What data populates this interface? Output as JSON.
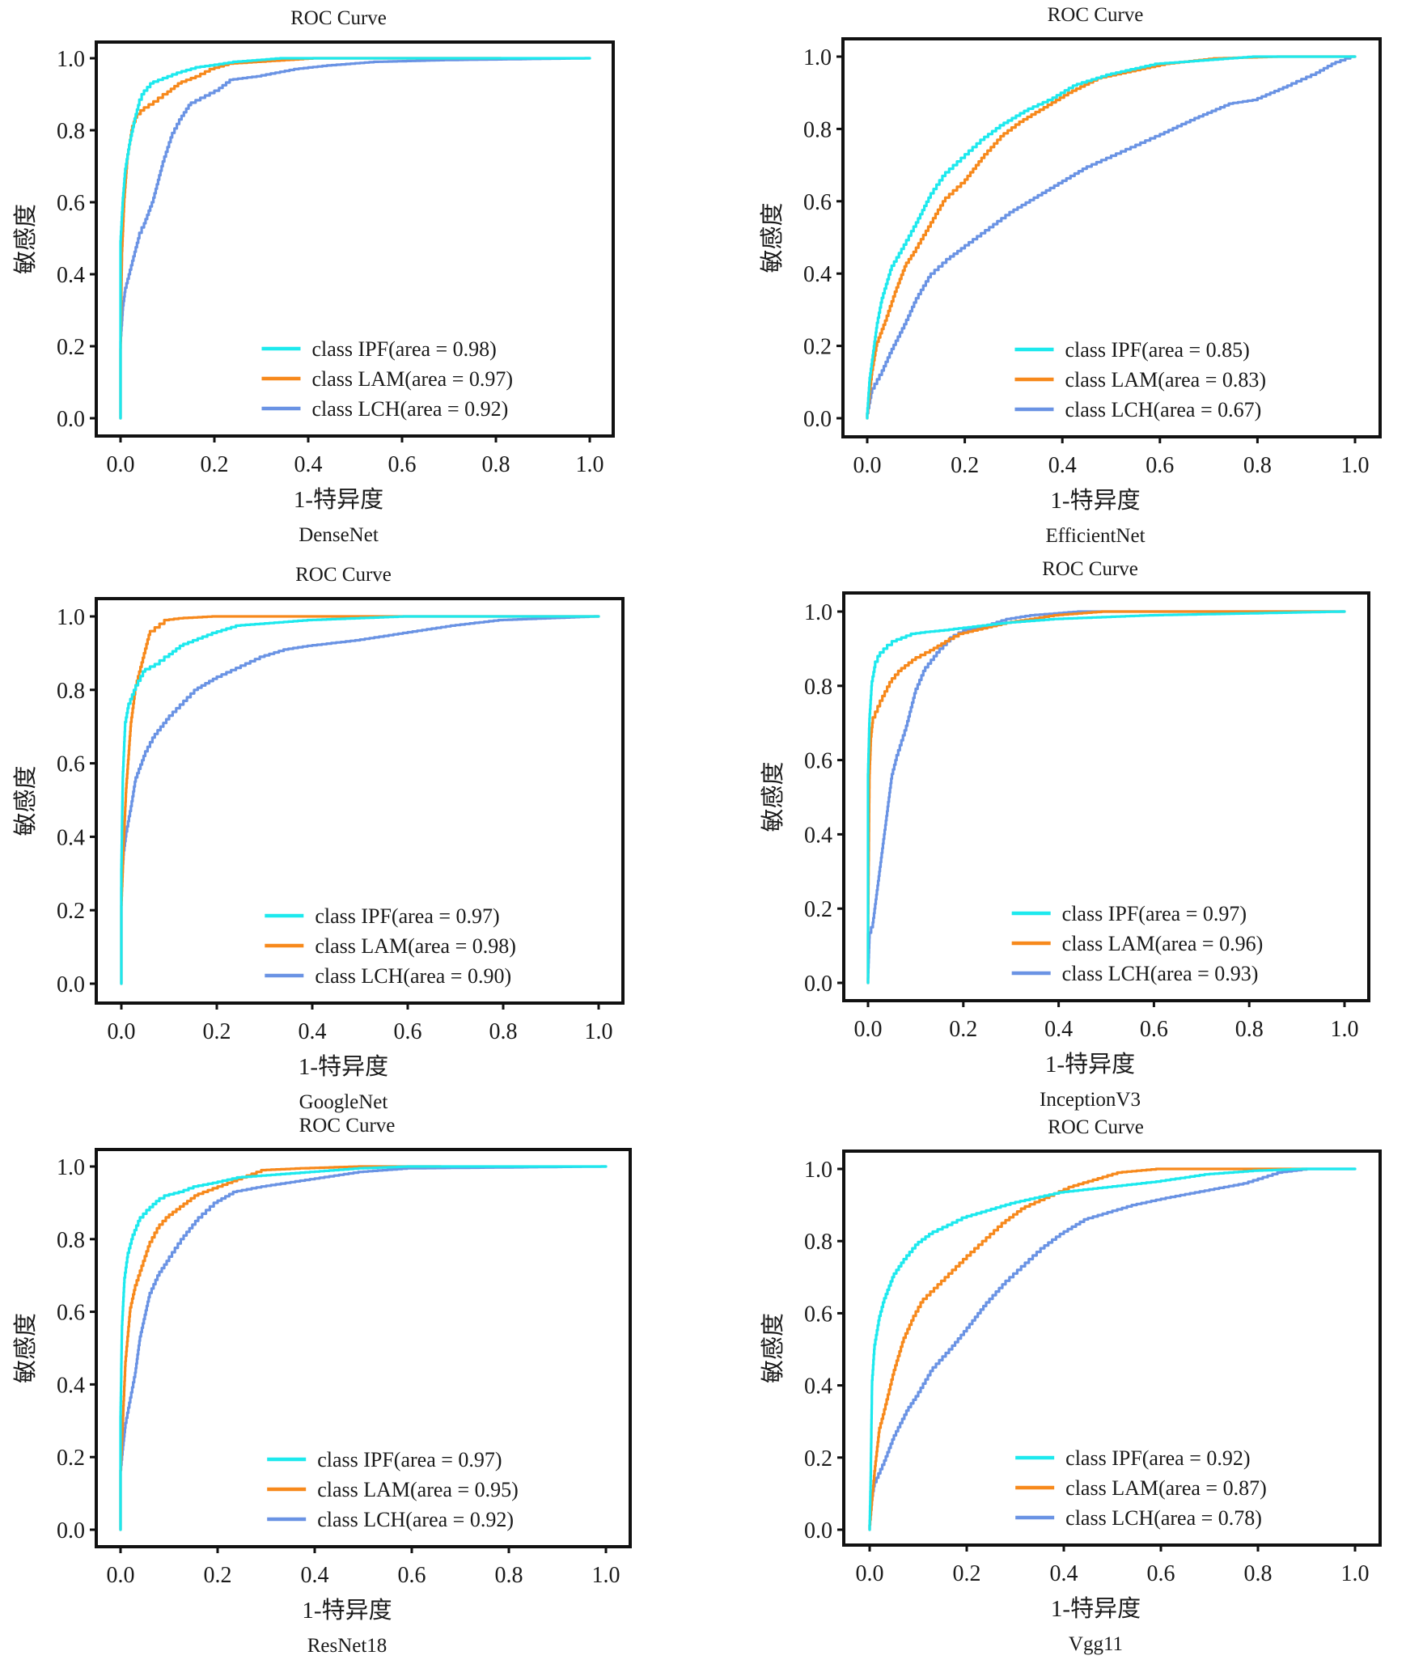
{
  "figure": {
    "panel_title": "ROC Curve",
    "xlabel": "1-特异度",
    "ylabel": "敏感度",
    "xticks": [
      "0.0",
      "0.2",
      "0.4",
      "0.6",
      "0.8",
      "1.0"
    ],
    "yticks": [
      "0.0",
      "0.2",
      "0.4",
      "0.6",
      "0.8",
      "1.0"
    ],
    "colors": {
      "IPF": "#1de9ee",
      "LAM": "#f7891c",
      "LCH": "#6a93e4"
    }
  },
  "chart_data": [
    {
      "type": "line",
      "title": "ROC Curve",
      "caption": "DenseNet",
      "xlabel": "1-特异度",
      "ylabel": "敏感度",
      "xlim": [
        0,
        1
      ],
      "ylim": [
        0,
        1
      ],
      "grid": false,
      "legend_position": "bottom-right",
      "series": [
        {
          "name": "IPF",
          "legend": "class IPF(area = 0.98)",
          "auc": 0.98,
          "x": [
            0,
            0,
            0.005,
            0.01,
            0.02,
            0.03,
            0.04,
            0.05,
            0.07,
            0.1,
            0.13,
            0.17,
            0.2,
            0.25,
            0.35,
            0.5,
            0.75,
            1.0
          ],
          "y": [
            0,
            0.48,
            0.6,
            0.68,
            0.76,
            0.82,
            0.87,
            0.9,
            0.93,
            0.945,
            0.96,
            0.975,
            0.98,
            0.99,
            1.0,
            1.0,
            1.0,
            1.0
          ]
        },
        {
          "name": "LAM",
          "legend": "class LAM(area = 0.97)",
          "auc": 0.97,
          "x": [
            0,
            0,
            0.003,
            0.008,
            0.015,
            0.025,
            0.035,
            0.05,
            0.08,
            0.1,
            0.13,
            0.17,
            0.2,
            0.24,
            0.3,
            0.42,
            0.58,
            0.81
          ],
          "y": [
            0,
            0.18,
            0.45,
            0.6,
            0.72,
            0.8,
            0.835,
            0.855,
            0.88,
            0.9,
            0.93,
            0.95,
            0.97,
            0.985,
            0.99,
            1.0,
            1.0,
            1.0
          ]
        },
        {
          "name": "LCH",
          "legend": "class LCH(area = 0.92)",
          "auc": 0.92,
          "x": [
            0,
            0,
            0.005,
            0.01,
            0.02,
            0.03,
            0.04,
            0.05,
            0.07,
            0.09,
            0.11,
            0.13,
            0.15,
            0.18,
            0.21,
            0.24,
            0.3,
            0.38,
            0.45,
            0.55,
            0.7,
            1.0
          ],
          "y": [
            0,
            0.2,
            0.3,
            0.35,
            0.4,
            0.45,
            0.5,
            0.53,
            0.6,
            0.7,
            0.78,
            0.83,
            0.87,
            0.89,
            0.91,
            0.94,
            0.95,
            0.97,
            0.98,
            0.99,
            0.995,
            1.0
          ]
        }
      ]
    },
    {
      "type": "line",
      "title": "ROC Curve",
      "caption": "EfficientNet",
      "xlabel": "1-特异度",
      "ylabel": "敏感度",
      "xlim": [
        0,
        1
      ],
      "ylim": [
        0,
        1
      ],
      "grid": false,
      "legend_position": "bottom-right",
      "series": [
        {
          "name": "IPF",
          "legend": "class IPF(area = 0.85)",
          "auc": 0.85,
          "x": [
            0,
            0.005,
            0.01,
            0.02,
            0.03,
            0.05,
            0.08,
            0.1,
            0.13,
            0.16,
            0.2,
            0.24,
            0.28,
            0.33,
            0.38,
            0.43,
            0.5,
            0.6,
            0.7,
            0.8,
            1.0
          ],
          "y": [
            0,
            0.1,
            0.15,
            0.25,
            0.32,
            0.41,
            0.48,
            0.53,
            0.61,
            0.67,
            0.72,
            0.77,
            0.81,
            0.85,
            0.88,
            0.92,
            0.95,
            0.98,
            0.99,
            1.0,
            1.0
          ]
        },
        {
          "name": "LAM",
          "legend": "class LAM(area = 0.83)",
          "auc": 0.83,
          "x": [
            0,
            0.01,
            0.02,
            0.04,
            0.06,
            0.08,
            0.1,
            0.13,
            0.16,
            0.2,
            0.24,
            0.28,
            0.32,
            0.37,
            0.42,
            0.48,
            0.55,
            0.62,
            0.72,
            0.85,
            1.0
          ],
          "y": [
            0,
            0.12,
            0.2,
            0.27,
            0.35,
            0.42,
            0.46,
            0.53,
            0.6,
            0.65,
            0.72,
            0.78,
            0.82,
            0.86,
            0.9,
            0.94,
            0.96,
            0.98,
            0.995,
            1.0,
            1.0
          ]
        },
        {
          "name": "LCH",
          "legend": "class LCH(area = 0.67)",
          "auc": 0.67,
          "x": [
            0,
            0.01,
            0.03,
            0.05,
            0.08,
            0.1,
            0.13,
            0.17,
            0.2,
            0.25,
            0.3,
            0.35,
            0.4,
            0.45,
            0.5,
            0.55,
            0.6,
            0.68,
            0.75,
            0.8,
            0.87,
            0.92,
            0.96,
            1.0
          ],
          "y": [
            0,
            0.07,
            0.12,
            0.18,
            0.26,
            0.32,
            0.39,
            0.44,
            0.47,
            0.52,
            0.57,
            0.61,
            0.65,
            0.69,
            0.72,
            0.75,
            0.78,
            0.83,
            0.87,
            0.88,
            0.92,
            0.95,
            0.98,
            1.0
          ]
        }
      ]
    },
    {
      "type": "line",
      "title": "ROC Curve",
      "caption": "GoogleNet",
      "xlabel": "1-特异度",
      "ylabel": "敏感度",
      "xlim": [
        0,
        1
      ],
      "ylim": [
        0,
        1
      ],
      "grid": false,
      "legend_position": "bottom-right",
      "series": [
        {
          "name": "IPF",
          "legend": "class IPF(area = 0.97)",
          "auc": 0.97,
          "x": [
            0,
            0,
            0.003,
            0.008,
            0.015,
            0.03,
            0.05,
            0.08,
            0.1,
            0.13,
            0.17,
            0.2,
            0.25,
            0.3,
            0.4,
            0.5,
            0.6,
            0.8,
            1.0
          ],
          "y": [
            0,
            0.3,
            0.55,
            0.7,
            0.75,
            0.8,
            0.85,
            0.87,
            0.89,
            0.92,
            0.94,
            0.955,
            0.975,
            0.98,
            0.99,
            0.995,
            1.0,
            1.0,
            1.0
          ]
        },
        {
          "name": "LAM",
          "legend": "class LAM(area = 0.98)",
          "auc": 0.98,
          "x": [
            0,
            0,
            0.005,
            0.01,
            0.02,
            0.03,
            0.04,
            0.05,
            0.06,
            0.08,
            0.1,
            0.13,
            0.2,
            0.4,
            0.6,
            1.0
          ],
          "y": [
            0,
            0.2,
            0.38,
            0.52,
            0.7,
            0.8,
            0.85,
            0.9,
            0.95,
            0.97,
            0.99,
            0.995,
            1.0,
            1.0,
            1.0,
            1.0
          ]
        },
        {
          "name": "LCH",
          "legend": "class LCH(area = 0.90)",
          "auc": 0.9,
          "x": [
            0,
            0,
            0.005,
            0.01,
            0.02,
            0.03,
            0.05,
            0.07,
            0.1,
            0.13,
            0.16,
            0.2,
            0.25,
            0.3,
            0.35,
            0.4,
            0.5,
            0.6,
            0.7,
            0.8,
            0.9,
            1.0
          ],
          "y": [
            0,
            0.25,
            0.35,
            0.4,
            0.47,
            0.55,
            0.62,
            0.67,
            0.72,
            0.76,
            0.8,
            0.83,
            0.86,
            0.89,
            0.91,
            0.92,
            0.935,
            0.955,
            0.975,
            0.99,
            0.995,
            1.0
          ]
        }
      ]
    },
    {
      "type": "line",
      "title": "ROC Curve",
      "caption": "InceptionV3",
      "xlabel": "1-特异度",
      "ylabel": "敏感度",
      "xlim": [
        0,
        1
      ],
      "ylim": [
        0,
        1
      ],
      "grid": false,
      "legend_position": "bottom-right",
      "series": [
        {
          "name": "IPF",
          "legend": "class IPF(area = 0.97)",
          "auc": 0.97,
          "x": [
            0,
            0,
            0.003,
            0.008,
            0.015,
            0.025,
            0.04,
            0.06,
            0.08,
            0.1,
            0.13,
            0.17,
            0.2,
            0.3,
            0.4,
            0.6,
            0.8,
            1.0
          ],
          "y": [
            0,
            0.55,
            0.7,
            0.8,
            0.85,
            0.88,
            0.9,
            0.92,
            0.93,
            0.94,
            0.945,
            0.95,
            0.955,
            0.97,
            0.98,
            0.99,
            0.995,
            1.0
          ]
        },
        {
          "name": "LAM",
          "legend": "class LAM(area = 0.96)",
          "auc": 0.96,
          "x": [
            0,
            0,
            0.003,
            0.006,
            0.01,
            0.02,
            0.03,
            0.05,
            0.07,
            0.1,
            0.13,
            0.17,
            0.2,
            0.25,
            0.3,
            0.4,
            0.5,
            1.0
          ],
          "y": [
            0,
            0.12,
            0.55,
            0.65,
            0.7,
            0.73,
            0.76,
            0.81,
            0.84,
            0.87,
            0.89,
            0.92,
            0.94,
            0.955,
            0.97,
            0.99,
            1.0,
            1.0
          ]
        },
        {
          "name": "LCH",
          "legend": "class LCH(area = 0.93)",
          "auc": 0.93,
          "x": [
            0,
            0.003,
            0.01,
            0.02,
            0.03,
            0.04,
            0.05,
            0.06,
            0.08,
            0.1,
            0.12,
            0.15,
            0.18,
            0.21,
            0.25,
            0.3,
            0.35,
            0.45,
            0.6,
            1.0
          ],
          "y": [
            0,
            0.12,
            0.15,
            0.25,
            0.35,
            0.45,
            0.55,
            0.6,
            0.68,
            0.78,
            0.84,
            0.89,
            0.93,
            0.95,
            0.96,
            0.98,
            0.99,
            1.0,
            1.0,
            1.0
          ]
        }
      ]
    },
    {
      "type": "line",
      "title": "ROC Curve",
      "caption": "ResNet18",
      "xlabel": "1-特异度",
      "ylabel": "敏感度",
      "xlim": [
        0,
        1
      ],
      "ylim": [
        0,
        1
      ],
      "grid": false,
      "legend_position": "bottom-right",
      "series": [
        {
          "name": "IPF",
          "legend": "class IPF(area = 0.97)",
          "auc": 0.97,
          "x": [
            0,
            0,
            0.003,
            0.008,
            0.015,
            0.025,
            0.04,
            0.06,
            0.08,
            0.1,
            0.13,
            0.16,
            0.2,
            0.25,
            0.3,
            0.4,
            0.5,
            0.6,
            1.0
          ],
          "y": [
            0,
            0.3,
            0.55,
            0.68,
            0.75,
            0.8,
            0.85,
            0.88,
            0.905,
            0.92,
            0.93,
            0.945,
            0.955,
            0.97,
            0.975,
            0.985,
            0.995,
            1.0,
            1.0
          ]
        },
        {
          "name": "LAM",
          "legend": "class LAM(area = 0.95)",
          "auc": 0.95,
          "x": [
            0,
            0,
            0.005,
            0.01,
            0.02,
            0.03,
            0.04,
            0.06,
            0.08,
            0.1,
            0.13,
            0.16,
            0.2,
            0.25,
            0.3,
            0.38,
            0.5,
            0.66
          ],
          "y": [
            0,
            0.15,
            0.3,
            0.45,
            0.6,
            0.66,
            0.7,
            0.78,
            0.83,
            0.86,
            0.89,
            0.92,
            0.94,
            0.965,
            0.99,
            0.995,
            1.0,
            1.0
          ]
        },
        {
          "name": "LCH",
          "legend": "class LCH(area = 0.92)",
          "auc": 0.92,
          "x": [
            0,
            0,
            0.005,
            0.01,
            0.02,
            0.03,
            0.04,
            0.05,
            0.06,
            0.08,
            0.1,
            0.13,
            0.16,
            0.2,
            0.24,
            0.3,
            0.4,
            0.5,
            0.6,
            1.0
          ],
          "y": [
            0,
            0.15,
            0.22,
            0.28,
            0.35,
            0.42,
            0.52,
            0.58,
            0.64,
            0.7,
            0.74,
            0.8,
            0.85,
            0.9,
            0.93,
            0.945,
            0.965,
            0.985,
            0.995,
            1.0
          ]
        }
      ]
    },
    {
      "type": "line",
      "title": "ROC Curve",
      "caption": "Vgg11",
      "xlabel": "1-特异度",
      "ylabel": "敏感度",
      "xlim": [
        0,
        1
      ],
      "ylim": [
        0,
        1
      ],
      "grid": false,
      "legend_position": "bottom-right",
      "series": [
        {
          "name": "IPF",
          "legend": "class IPF(area = 0.92)",
          "auc": 0.92,
          "x": [
            0,
            0.002,
            0.005,
            0.01,
            0.02,
            0.03,
            0.05,
            0.07,
            0.1,
            0.13,
            0.17,
            0.2,
            0.25,
            0.3,
            0.35,
            0.4,
            0.5,
            0.6,
            0.7,
            0.8,
            0.9,
            1.0
          ],
          "y": [
            0,
            0.12,
            0.4,
            0.5,
            0.58,
            0.63,
            0.7,
            0.74,
            0.79,
            0.82,
            0.845,
            0.865,
            0.885,
            0.905,
            0.92,
            0.935,
            0.95,
            0.965,
            0.985,
            0.995,
            1.0,
            1.0
          ]
        },
        {
          "name": "LAM",
          "legend": "class LAM(area = 0.87)",
          "auc": 0.87,
          "x": [
            0,
            0.01,
            0.02,
            0.03,
            0.05,
            0.07,
            0.09,
            0.11,
            0.14,
            0.17,
            0.2,
            0.24,
            0.28,
            0.32,
            0.37,
            0.42,
            0.47,
            0.52,
            0.6,
            0.75,
            0.9
          ],
          "y": [
            0,
            0.15,
            0.27,
            0.32,
            0.43,
            0.52,
            0.58,
            0.63,
            0.67,
            0.71,
            0.75,
            0.8,
            0.85,
            0.89,
            0.92,
            0.95,
            0.97,
            0.99,
            1.0,
            1.0,
            1.0
          ]
        },
        {
          "name": "LCH",
          "legend": "class LCH(area = 0.78)",
          "auc": 0.78,
          "x": [
            0,
            0.005,
            0.01,
            0.03,
            0.05,
            0.08,
            0.1,
            0.13,
            0.17,
            0.2,
            0.24,
            0.28,
            0.32,
            0.36,
            0.4,
            0.45,
            0.5,
            0.55,
            0.62,
            0.7,
            0.78,
            0.85,
            0.91,
            1.0
          ],
          "y": [
            0,
            0.08,
            0.12,
            0.18,
            0.25,
            0.33,
            0.37,
            0.44,
            0.5,
            0.55,
            0.62,
            0.68,
            0.73,
            0.78,
            0.82,
            0.86,
            0.88,
            0.9,
            0.92,
            0.94,
            0.96,
            0.99,
            1.0,
            1.0
          ]
        }
      ]
    }
  ]
}
